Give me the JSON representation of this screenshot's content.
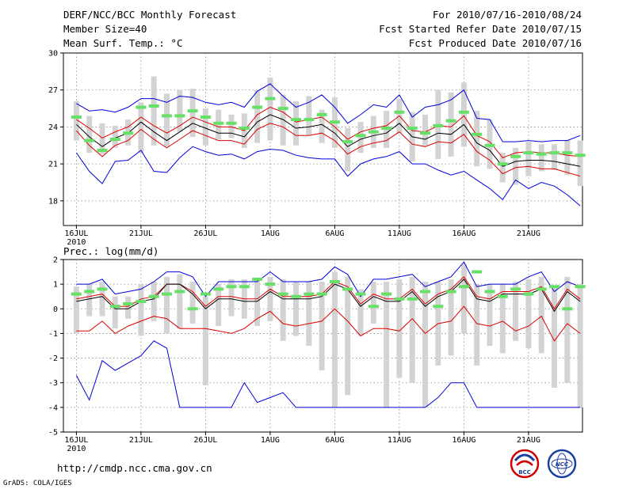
{
  "header": {
    "title": "DERF/NCC/BCC Monthly Forecast",
    "member_size": "Member Size=40",
    "variable1": "Mean Surf. Temp.: °C",
    "period": "For 2010/07/16-2010/08/24",
    "started": "Fcst Started Refer Date 2010/07/15",
    "produced": "Fcst Produced Date 2010/07/16"
  },
  "footer": {
    "url": "http://cmdp.ncc.cma.gov.cn",
    "grads": "GrADS: COLA/IGES",
    "logo_bcc": "BCC",
    "logo_ncc": "NCC"
  },
  "colors": {
    "max": "#0000dd",
    "min": "#dd0000",
    "mean": "#000000",
    "obs": "#66e066",
    "bar": "#d3d3d3",
    "grid": "#888888"
  },
  "chart_data": [
    {
      "type": "line",
      "title": "Mean Surf. Temp.: °C",
      "x_first_day": 16,
      "ylim": [
        16,
        30
      ],
      "yticks": [
        18,
        21,
        24,
        27,
        30
      ],
      "xtick_labels": [
        "16JUL",
        "21JUL",
        "26JUL",
        "1AUG",
        "6AUG",
        "11AUG",
        "16AUG",
        "21AUG"
      ],
      "xtick_sublabel": "2010",
      "series": [
        {
          "name": "max",
          "values": [
            25.9,
            25.3,
            25.4,
            25.2,
            25.6,
            26.3,
            26.3,
            26.0,
            26.5,
            26.4,
            26.0,
            25.8,
            26.0,
            25.6,
            26.9,
            27.5,
            26.5,
            25.6,
            26.0,
            26.6,
            25.6,
            24.3,
            25.0,
            25.8,
            25.6,
            26.6,
            24.8,
            25.6,
            25.8,
            26.2,
            27.0,
            24.7,
            24.6,
            22.8,
            22.8,
            22.9,
            22.8,
            22.9,
            22.9,
            23.3
          ]
        },
        {
          "name": "mean",
          "values": [
            24.2,
            23.2,
            22.4,
            23.1,
            23.5,
            24.4,
            23.6,
            22.9,
            23.6,
            24.3,
            23.9,
            23.5,
            23.5,
            23.2,
            24.4,
            25.0,
            24.6,
            23.9,
            24.0,
            24.2,
            23.5,
            22.4,
            23.0,
            23.3,
            23.5,
            24.3,
            23.2,
            23.0,
            23.5,
            23.4,
            24.2,
            22.7,
            22.1,
            20.8,
            21.2,
            21.3,
            21.3,
            21.2,
            21.0,
            20.8
          ]
        },
        {
          "name": "min",
          "values": [
            21.9,
            20.4,
            19.4,
            21.2,
            21.3,
            22.1,
            20.4,
            20.3,
            21.5,
            22.4,
            22.0,
            21.7,
            21.8,
            21.4,
            22.0,
            22.2,
            22.1,
            21.7,
            21.5,
            21.4,
            21.4,
            20.0,
            21.0,
            21.4,
            21.6,
            22.0,
            21.0,
            21.0,
            20.5,
            20.1,
            20.4,
            19.7,
            19.0,
            18.1,
            19.7,
            19.0,
            19.5,
            19.2,
            18.5,
            17.6
          ]
        },
        {
          "name": "upper",
          "values": [
            24.6,
            23.9,
            23.1,
            23.6,
            24.0,
            24.8,
            24.1,
            23.5,
            24.1,
            24.8,
            24.4,
            24.0,
            24.0,
            23.7,
            25.0,
            25.6,
            25.2,
            24.4,
            24.6,
            24.8,
            24.0,
            23.0,
            23.6,
            23.9,
            24.1,
            24.9,
            23.7,
            23.6,
            24.1,
            24.0,
            24.9,
            23.3,
            22.8,
            21.5,
            21.9,
            22.0,
            21.9,
            21.9,
            21.7,
            21.6
          ]
        },
        {
          "name": "lower",
          "values": [
            23.7,
            22.5,
            21.6,
            22.5,
            22.9,
            23.8,
            23.0,
            22.3,
            23.0,
            23.7,
            23.3,
            22.9,
            22.9,
            22.6,
            23.8,
            24.3,
            24.0,
            23.3,
            23.3,
            23.5,
            22.9,
            21.8,
            22.4,
            22.7,
            22.9,
            23.6,
            22.6,
            22.4,
            22.8,
            22.7,
            23.4,
            22.0,
            21.3,
            20.2,
            20.7,
            20.8,
            20.6,
            20.6,
            20.3,
            20.0
          ]
        },
        {
          "name": "obs",
          "values": [
            24.8,
            22.9,
            22.1,
            23.0,
            23.5,
            25.6,
            25.7,
            24.9,
            24.9,
            25.3,
            24.8,
            24.3,
            24.3,
            23.9,
            25.6,
            26.3,
            25.5,
            24.6,
            24.6,
            25.0,
            24.4,
            22.8,
            23.3,
            23.6,
            23.9,
            25.2,
            23.9,
            23.5,
            24.1,
            24.5,
            25.2,
            23.4,
            22.5,
            21.0,
            21.6,
            21.9,
            21.8,
            21.9,
            21.9,
            21.7
          ]
        },
        {
          "name": "bar_top",
          "values": [
            26.1,
            24.9,
            24.3,
            24.1,
            24.6,
            26.0,
            28.1,
            26.7,
            27.0,
            27.1,
            25.5,
            25.4,
            25.0,
            25.1,
            27.0,
            28.0,
            26.6,
            26.1,
            26.5,
            25.4,
            26.4,
            23.9,
            24.4,
            24.9,
            25.3,
            26.3,
            25.2,
            25.0,
            27.0,
            26.8,
            27.6,
            25.3,
            24.6,
            21.9,
            22.3,
            22.8,
            22.6,
            22.6,
            22.9,
            22.9
          ]
        },
        {
          "name": "bar_bottom",
          "values": [
            22.9,
            21.9,
            21.8,
            22.3,
            22.5,
            21.9,
            22.5,
            22.4,
            23.6,
            23.2,
            22.5,
            23.0,
            23.1,
            22.3,
            22.7,
            22.9,
            22.5,
            22.5,
            23.3,
            22.7,
            22.3,
            20.4,
            21.9,
            22.3,
            22.3,
            23.5,
            21.2,
            22.5,
            21.4,
            21.6,
            22.4,
            20.8,
            20.6,
            19.5,
            19.3,
            20.0,
            20.4,
            20.5,
            20.1,
            19.2
          ]
        }
      ]
    },
    {
      "type": "line",
      "title": "Prec.: log(mm/d)",
      "x_first_day": 16,
      "ylim": [
        -5,
        2
      ],
      "yticks": [
        -5,
        -4,
        -3,
        -2,
        -1,
        0,
        1,
        2
      ],
      "xtick_labels": [
        "16JUL",
        "21JUL",
        "26JUL",
        "1AUG",
        "6AUG",
        "11AUG",
        "16AUG",
        "21AUG"
      ],
      "xtick_sublabel": "2010",
      "series": [
        {
          "name": "max",
          "values": [
            1.0,
            1.0,
            1.2,
            0.6,
            0.7,
            0.8,
            1.1,
            1.5,
            1.5,
            1.3,
            0.5,
            1.1,
            1.1,
            1.1,
            1.1,
            1.5,
            1.1,
            1.1,
            1.1,
            1.2,
            1.7,
            1.4,
            0.5,
            1.2,
            1.2,
            1.3,
            1.4,
            0.9,
            1.1,
            1.3,
            1.9,
            0.9,
            1.0,
            1.0,
            1.0,
            1.3,
            1.5,
            0.7,
            1.1,
            0.9
          ]
        },
        {
          "name": "mean",
          "values": [
            0.3,
            0.4,
            0.5,
            0.0,
            0.0,
            0.3,
            0.4,
            1.0,
            1.0,
            0.6,
            0.0,
            0.4,
            0.4,
            0.3,
            0.3,
            0.7,
            0.4,
            0.4,
            0.4,
            0.5,
            1.0,
            0.8,
            0.1,
            0.5,
            0.3,
            0.3,
            0.7,
            0.1,
            0.5,
            0.7,
            1.2,
            0.4,
            0.3,
            0.6,
            0.6,
            0.6,
            0.8,
            -0.1,
            0.7,
            0.3
          ]
        },
        {
          "name": "min",
          "values": [
            -2.7,
            -3.7,
            -2.1,
            -2.5,
            -2.2,
            -1.9,
            -1.3,
            -1.6,
            -4.0,
            -4.0,
            -4.0,
            -4.0,
            -4.0,
            -3.0,
            -3.8,
            -3.6,
            -3.4,
            -4.0,
            -4.0,
            -4.0,
            -4.0,
            -4.0,
            -4.0,
            -4.0,
            -4.0,
            -4.0,
            -4.0,
            -4.0,
            -3.6,
            -3.0,
            -3.0,
            -4.0,
            -4.0,
            -4.0,
            -4.0,
            -4.0,
            -4.0,
            -4.0,
            -4.0,
            -4.0
          ]
        },
        {
          "name": "upper",
          "values": [
            0.4,
            0.5,
            0.6,
            0.1,
            0.1,
            0.4,
            0.5,
            1.0,
            1.0,
            0.7,
            0.1,
            0.5,
            0.5,
            0.4,
            0.4,
            0.8,
            0.5,
            0.5,
            0.5,
            0.6,
            1.1,
            0.9,
            0.2,
            0.6,
            0.4,
            0.4,
            0.8,
            0.2,
            0.6,
            0.8,
            1.3,
            0.5,
            0.4,
            0.7,
            0.7,
            0.7,
            0.9,
            0.0,
            0.8,
            0.4
          ]
        },
        {
          "name": "lower",
          "values": [
            -0.9,
            -0.9,
            -0.5,
            -1.0,
            -0.7,
            -0.5,
            -0.3,
            -0.4,
            -0.8,
            -0.8,
            -0.8,
            -0.9,
            -1.0,
            -0.8,
            -0.4,
            -0.1,
            -0.6,
            -0.7,
            -0.6,
            -0.5,
            0.0,
            -0.5,
            -1.1,
            -0.8,
            -0.8,
            -0.9,
            -0.4,
            -1.0,
            -0.6,
            -0.5,
            0.1,
            -0.6,
            -0.7,
            -0.5,
            -0.9,
            -0.7,
            -0.3,
            -1.3,
            -0.6,
            -1.0
          ]
        },
        {
          "name": "obs",
          "values": [
            0.6,
            0.7,
            0.8,
            0.1,
            0.2,
            0.3,
            0.5,
            0.6,
            0.7,
            0.0,
            0.6,
            0.8,
            0.9,
            0.9,
            1.2,
            1.0,
            0.6,
            0.5,
            0.6,
            0.6,
            1.1,
            0.8,
            0.6,
            0.1,
            0.6,
            0.4,
            0.4,
            0.7,
            0.1,
            0.7,
            0.9,
            1.5,
            0.7,
            0.5,
            0.8,
            0.6,
            0.8,
            0.9,
            0.0,
            0.9
          ]
        },
        {
          "name": "bar_top",
          "values": [
            0.9,
            1.0,
            1.1,
            0.5,
            0.5,
            1.0,
            1.1,
            1.3,
            1.4,
            1.1,
            0.5,
            1.0,
            1.2,
            1.2,
            1.2,
            1.3,
            1.2,
            1.1,
            1.1,
            1.1,
            1.5,
            1.3,
            0.8,
            1.1,
            1.1,
            1.2,
            1.3,
            1.1,
            1.1,
            1.2,
            1.8,
            1.0,
            1.0,
            1.0,
            1.1,
            1.2,
            1.3,
            0.9,
            1.3,
            1.0
          ]
        },
        {
          "name": "bar_bottom",
          "values": [
            -1.0,
            -0.3,
            -0.3,
            -0.8,
            -0.4,
            -1.1,
            -0.5,
            -1.0,
            -0.8,
            -0.6,
            -3.1,
            -0.7,
            -0.3,
            -0.4,
            -0.7,
            -0.5,
            -1.3,
            -1.1,
            -1.5,
            -2.5,
            -4.0,
            -3.5,
            -1.1,
            -0.6,
            -4.0,
            -2.8,
            -3.0,
            -4.0,
            -2.3,
            -1.9,
            -1.0,
            -2.3,
            -1.5,
            -1.8,
            -1.3,
            -1.6,
            -1.8,
            -3.2,
            -3.0,
            -4.0
          ]
        }
      ]
    }
  ]
}
